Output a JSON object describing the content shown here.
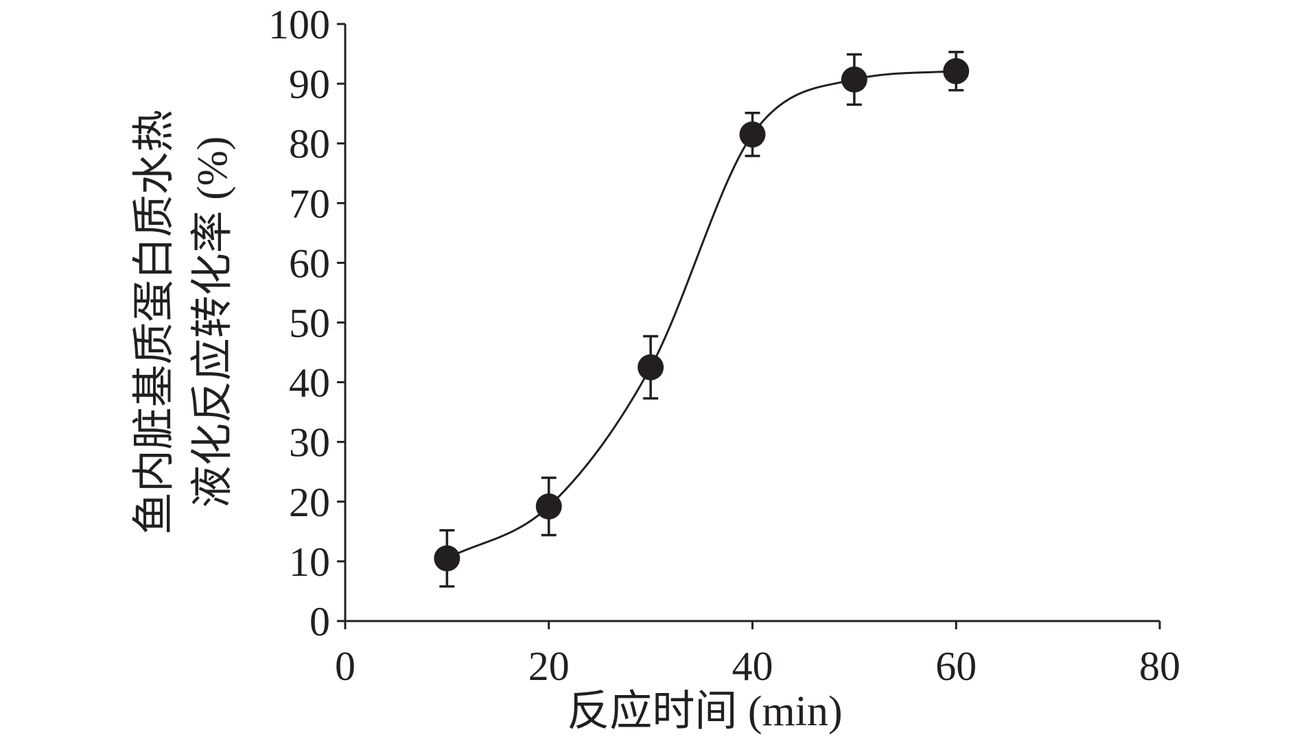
{
  "chart_data": {
    "type": "scatter",
    "title": "",
    "xlabel": "反应时间 (min)",
    "ylabel_lines": [
      "鱼内脏基质蛋白质水热",
      "液化反应转化率 (%)"
    ],
    "xlim": [
      0,
      80
    ],
    "ylim": [
      0,
      100
    ],
    "xticks": [
      0,
      20,
      40,
      60,
      80
    ],
    "yticks": [
      0,
      10,
      20,
      30,
      40,
      50,
      60,
      70,
      80,
      90,
      100
    ],
    "grid": false,
    "legend": "none",
    "series": [
      {
        "x": [
          10,
          20,
          30,
          40,
          50,
          60
        ],
        "y": [
          10.5,
          19.2,
          42.5,
          81.5,
          90.7,
          92.1
        ],
        "error": [
          4.7,
          4.8,
          5.2,
          3.6,
          4.2,
          3.2
        ],
        "marker": "filled-circle",
        "fit_line": "smooth-sigmoid"
      }
    ],
    "colors": {
      "ink": "#231f20"
    }
  }
}
